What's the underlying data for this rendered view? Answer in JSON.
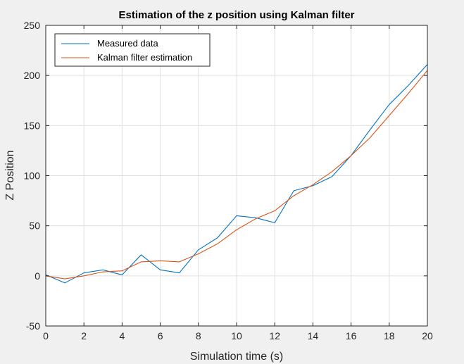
{
  "colors": {
    "figure_bg": "#f0f0f0",
    "axes_bg": "#ffffff",
    "grid": "#dfdfdf",
    "axis": "#262626",
    "measured": "#0072bd",
    "kalman": "#d95319"
  },
  "chart_data": {
    "type": "line",
    "title": "Estimation of the z position using Kalman filter",
    "xlabel": "Simulation time (s)",
    "ylabel": "Z Position",
    "xlim": [
      0,
      20
    ],
    "ylim": [
      -50,
      250
    ],
    "xticks": [
      0,
      2,
      4,
      6,
      8,
      10,
      12,
      14,
      16,
      18,
      20
    ],
    "yticks": [
      -50,
      0,
      50,
      100,
      150,
      200,
      250
    ],
    "grid": true,
    "legend_position": "top-left",
    "series": [
      {
        "name": "Measured data",
        "color": "#0072bd",
        "x": [
          0,
          1,
          2,
          3,
          4,
          5,
          6,
          7,
          8,
          9,
          10,
          11,
          12,
          13,
          14,
          15,
          16,
          17,
          18,
          19,
          20
        ],
        "y": [
          1,
          -7,
          3,
          6,
          1,
          21,
          6,
          3,
          26,
          38,
          60,
          58,
          53,
          85,
          90,
          99,
          120,
          146,
          171,
          190,
          211
        ]
      },
      {
        "name": "Kalman filter estimation",
        "color": "#d95319",
        "x": [
          0,
          1,
          2,
          3,
          4,
          5,
          6,
          7,
          8,
          9,
          10,
          11,
          12,
          13,
          14,
          15,
          16,
          17,
          18,
          19,
          20
        ],
        "y": [
          0,
          -3,
          0,
          4,
          5,
          14,
          15,
          14,
          22,
          32,
          46,
          57,
          65,
          80,
          91,
          104,
          120,
          138,
          160,
          182,
          205
        ]
      }
    ]
  }
}
